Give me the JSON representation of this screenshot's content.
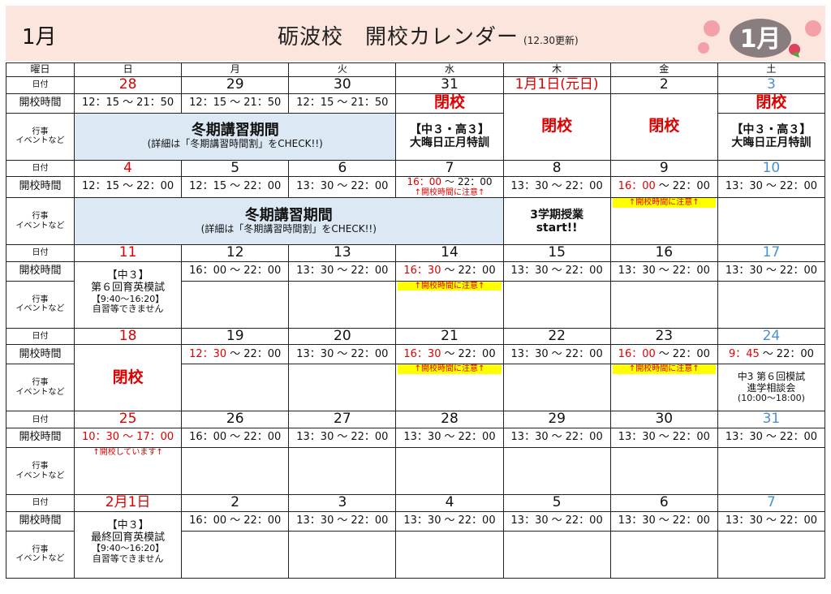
{
  "header": {
    "month": "1月",
    "title": "砺波校　開校カレンダー",
    "updated": "(12.30更新)",
    "logo_text": "1月",
    "bg_color": "#fce5dc"
  },
  "labels": {
    "weekday": "曜日",
    "date": "日付",
    "hours": "開校時間",
    "event": "行事\nイベントなど"
  },
  "weekdays": [
    "日",
    "月",
    "火",
    "水",
    "木",
    "金",
    "土"
  ],
  "colors": {
    "sunday": "#e00000",
    "saturday": "#4a8fd0",
    "highlight": "#ffff00",
    "block": "#dce9f5"
  },
  "weeks": [
    {
      "dates": [
        {
          "t": "28",
          "c": "red"
        },
        {
          "t": "29"
        },
        {
          "t": "30"
        },
        {
          "t": "31"
        },
        {
          "t": "1月1日(元日)",
          "c": "red"
        },
        {
          "t": "2"
        },
        {
          "t": "3",
          "c": "blue"
        }
      ],
      "times": [
        {
          "s": "12：15",
          "e": "21：50"
        },
        {
          "s": "12：15",
          "e": "21：50"
        },
        {
          "s": "12：15",
          "e": "21：50"
        },
        {
          "closed": "閉校"
        },
        {
          "closed": "閉校",
          "rowspan": 2
        },
        {
          "closed": "閉校",
          "rowspan": 2
        },
        {
          "closed": "閉校"
        }
      ],
      "events": [
        {
          "block": "冬期講習期間",
          "sub": "(詳細は「冬期講習時間割」をCHECK!!)",
          "colspan": 3
        },
        {
          "ev": [
            "【中３・高３】",
            "大晦日正月特訓"
          ]
        },
        {
          "skip": true
        },
        {
          "skip": true
        },
        {
          "ev": [
            "【中３・高３】",
            "大晦日正月特訓"
          ]
        }
      ]
    },
    {
      "dates": [
        {
          "t": "4",
          "c": "red"
        },
        {
          "t": "5"
        },
        {
          "t": "6"
        },
        {
          "t": "7"
        },
        {
          "t": "8"
        },
        {
          "t": "9"
        },
        {
          "t": "10",
          "c": "blue"
        }
      ],
      "times": [
        {
          "s": "12：15",
          "e": "22：00"
        },
        {
          "s": "12：15",
          "e": "22：00"
        },
        {
          "s": "13：30",
          "e": "22：00"
        },
        {
          "s": "16：00",
          "e": "22：00",
          "sr": true,
          "note": "↑開校時間に注意↑"
        },
        {
          "s": "13：30",
          "e": "22：00"
        },
        {
          "s": "16：00",
          "e": "22：00",
          "sr": true
        },
        {
          "s": "13：30",
          "e": "22：00"
        }
      ],
      "events": [
        {
          "block": "冬期講習期間",
          "sub": "(詳細は「冬期講習時間割」をCHECK!!)",
          "colspan": 4
        },
        {
          "ev": [
            "3学期授業",
            "start!!"
          ]
        },
        {
          "ynote": "↑開校時間に注意↑"
        },
        {}
      ]
    },
    {
      "dates": [
        {
          "t": "11",
          "c": "red"
        },
        {
          "t": "12"
        },
        {
          "t": "13"
        },
        {
          "t": "14"
        },
        {
          "t": "15"
        },
        {
          "t": "16"
        },
        {
          "t": "17",
          "c": "blue"
        }
      ],
      "times": [
        {
          "rowspan": 2,
          "exam": [
            "【中３】",
            "第６回育英模試",
            "【9:40～16:20】",
            "自習等できません"
          ]
        },
        {
          "s": "16：00",
          "e": "22：00"
        },
        {
          "s": "13：30",
          "e": "22：00"
        },
        {
          "s": "16：30",
          "e": "22：00",
          "sr": true
        },
        {
          "s": "13：30",
          "e": "22：00"
        },
        {
          "s": "13：30",
          "e": "22：00"
        },
        {
          "s": "13：30",
          "e": "22：00"
        }
      ],
      "events": [
        {
          "skip": true
        },
        {},
        {},
        {
          "ynote": "↑開校時間に注意↑"
        },
        {},
        {},
        {}
      ]
    },
    {
      "dates": [
        {
          "t": "18",
          "c": "red"
        },
        {
          "t": "19"
        },
        {
          "t": "20"
        },
        {
          "t": "21"
        },
        {
          "t": "22"
        },
        {
          "t": "23"
        },
        {
          "t": "24",
          "c": "blue"
        }
      ],
      "times": [
        {
          "closed": "閉校",
          "rowspan": 2
        },
        {
          "s": "12：30",
          "e": "22：00",
          "sr": true
        },
        {
          "s": "13：30",
          "e": "22：00"
        },
        {
          "s": "16：30",
          "e": "22：00",
          "sr": true
        },
        {
          "s": "13：30",
          "e": "22：00"
        },
        {
          "s": "16：00",
          "e": "22：00",
          "sr": true
        },
        {
          "s": "9：45",
          "e": "22：00",
          "sr": true
        }
      ],
      "events": [
        {
          "skip": true
        },
        {},
        {},
        {
          "ynote": "↑開校時間に注意↑"
        },
        {},
        {
          "ynote": "↑開校時間に注意↑"
        },
        {
          "ev2": [
            "中3 第６回模試",
            "進学相談会",
            "(10:00～18:00)"
          ]
        }
      ]
    },
    {
      "dates": [
        {
          "t": "25",
          "c": "red"
        },
        {
          "t": "26"
        },
        {
          "t": "27"
        },
        {
          "t": "28"
        },
        {
          "t": "29"
        },
        {
          "t": "30"
        },
        {
          "t": "31",
          "c": "blue"
        }
      ],
      "times": [
        {
          "s": "10：30",
          "e": "17：00",
          "ar": true
        },
        {
          "s": "16：00",
          "e": "22：00"
        },
        {
          "s": "13：30",
          "e": "22：00"
        },
        {
          "s": "13：30",
          "e": "22：00"
        },
        {
          "s": "13：30",
          "e": "22：00"
        },
        {
          "s": "13：30",
          "e": "22：00"
        },
        {
          "s": "13：30",
          "e": "22：00"
        }
      ],
      "events": [
        {
          "rnote": "↑開校しています↑"
        },
        {},
        {},
        {},
        {},
        {},
        {}
      ]
    },
    {
      "dates": [
        {
          "t": "2月1日",
          "c": "red"
        },
        {
          "t": "2"
        },
        {
          "t": "3"
        },
        {
          "t": "4"
        },
        {
          "t": "5"
        },
        {
          "t": "6"
        },
        {
          "t": "7",
          "c": "blue"
        }
      ],
      "times": [
        {
          "rowspan": 2,
          "exam": [
            "【中３】",
            "最終回育英模試",
            "【9:40～16:20】",
            "自習等できません"
          ]
        },
        {
          "s": "16：00",
          "e": "22：00"
        },
        {
          "s": "13：30",
          "e": "22：00"
        },
        {
          "s": "13：30",
          "e": "22：00"
        },
        {
          "s": "13：30",
          "e": "22：00"
        },
        {
          "s": "13：30",
          "e": "22：00"
        },
        {
          "s": "13：30",
          "e": "22：00"
        }
      ],
      "events": [
        {
          "skip": true
        },
        {},
        {},
        {},
        {},
        {},
        {}
      ]
    }
  ],
  "sep": "～"
}
